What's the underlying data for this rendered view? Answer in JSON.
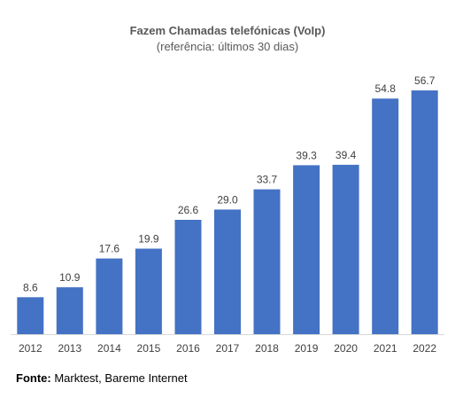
{
  "chart_data": {
    "type": "bar",
    "title": "Fazem Chamadas telefónicas (VoIp)",
    "subtitle": "(referência: últimos 30 dias)",
    "xlabel": "",
    "ylabel": "",
    "categories": [
      "2012",
      "2013",
      "2014",
      "2015",
      "2016",
      "2017",
      "2018",
      "2019",
      "2020",
      "2021",
      "2022"
    ],
    "values": [
      8.6,
      10.9,
      17.6,
      19.9,
      26.6,
      29.0,
      33.7,
      39.3,
      39.4,
      54.8,
      56.7
    ],
    "value_labels": [
      "8.6",
      "10.9",
      "17.6",
      "19.9",
      "26.6",
      "29.0",
      "33.7",
      "39.3",
      "39.4",
      "54.8",
      "56.7"
    ],
    "ylim": [
      0,
      60
    ],
    "grid": false,
    "legend": "none",
    "bar_color": "#4472c4",
    "axis_color": "#d9d9d9"
  },
  "source": {
    "label": "Fonte:",
    "text": " Marktest, Bareme Internet"
  }
}
